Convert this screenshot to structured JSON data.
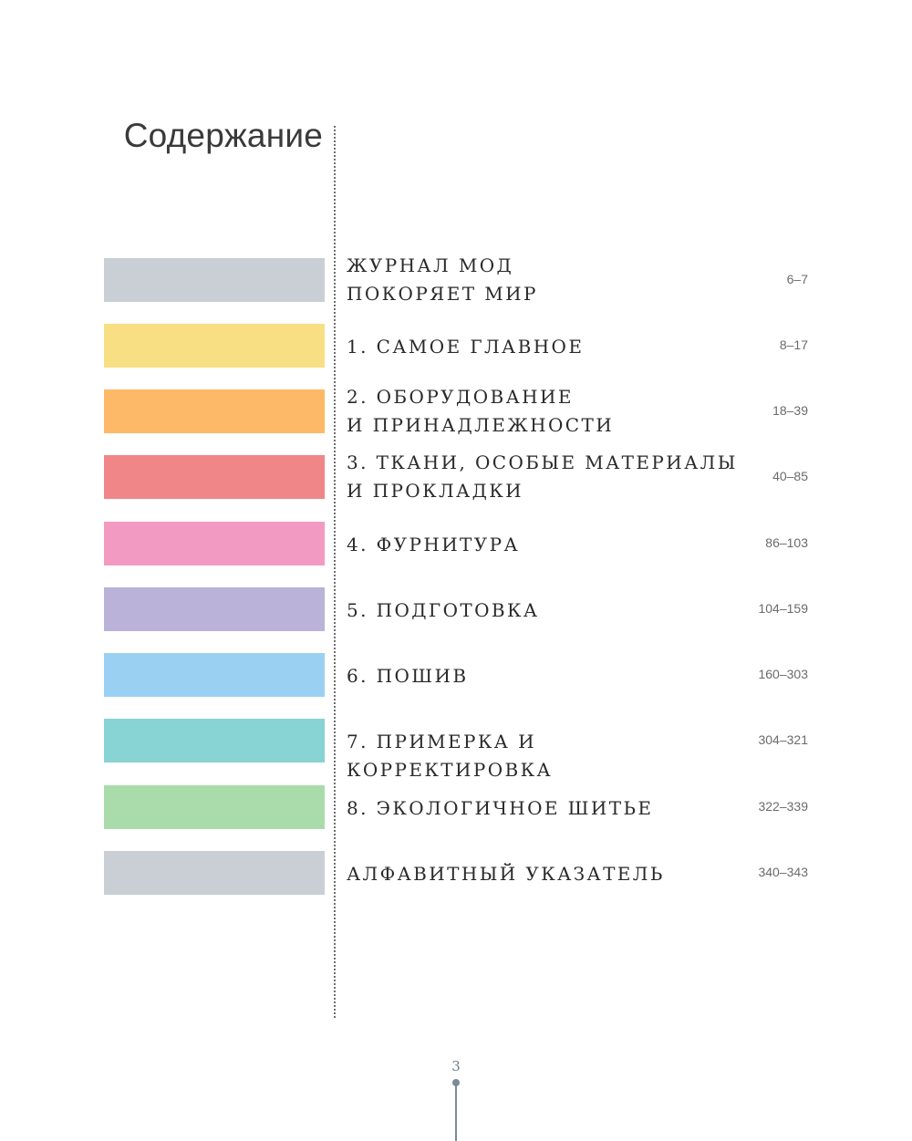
{
  "heading": "Содержание",
  "entries": [
    {
      "title_lines": [
        "ЖУРНАЛ МОД",
        "ПОКОРЯЕТ МИР"
      ],
      "pages": "6–7",
      "color": "#c9cfd4"
    },
    {
      "title_lines": [
        "1. САМОЕ ГЛАВНОЕ"
      ],
      "pages": "8–17",
      "color": "#f9df83"
    },
    {
      "title_lines": [
        "2. ОБОРУДОВАНИЕ",
        "И ПРИНАДЛЕЖНОСТИ"
      ],
      "pages": "18–39",
      "color": "#fdb968"
    },
    {
      "title_lines": [
        "3. ТКАНИ, ОСОБЫЕ МАТЕРИАЛЫ",
        "И ПРОКЛАДКИ"
      ],
      "pages": "40–85",
      "color": "#f08687"
    },
    {
      "title_lines": [
        "4. ФУРНИТУРА"
      ],
      "pages": "86–103",
      "color": "#f39ac2"
    },
    {
      "title_lines": [
        "5. ПОДГОТОВКА"
      ],
      "pages": "104–159",
      "color": "#bab2d8"
    },
    {
      "title_lines": [
        "6. ПОШИВ"
      ],
      "pages": "160–303",
      "color": "#9ad1f2"
    },
    {
      "title_lines": [
        "7. ПРИМЕРКА И КОРРЕКТИРОВКА"
      ],
      "pages": "304–321",
      "color": "#88d3d3"
    },
    {
      "title_lines": [
        "8. ЭКОЛОГИЧНОЕ ШИТЬЕ"
      ],
      "pages": "322–339",
      "color": "#a9dbab"
    },
    {
      "title_lines": [
        "АЛФАВИТНЫЙ УКАЗАТЕЛЬ"
      ],
      "pages": "340–343",
      "color": "#c9cfd4"
    }
  ],
  "page_number": "3"
}
